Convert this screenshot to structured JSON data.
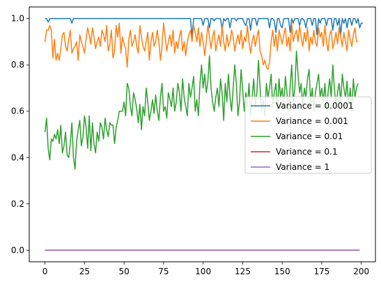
{
  "chart_data": {
    "type": "line",
    "x_ticks": [
      0,
      25,
      50,
      75,
      100,
      125,
      150,
      175,
      200
    ],
    "y_ticks": [
      "0.0",
      "0.2",
      "0.4",
      "0.6",
      "0.8",
      "1.0"
    ],
    "xlim": [
      -9.95,
      208.95
    ],
    "ylim": [
      -0.05,
      1.05
    ],
    "grid": false,
    "legend_position": "center-right",
    "series": [
      {
        "name": "Variance = 0.0001",
        "color": "#1f77b4",
        "values": [
          1.0,
          1.0,
          0.985,
          1.0,
          1.0,
          1.0,
          1.0,
          1.0,
          1.0,
          1.0,
          1.0,
          1.0,
          1.0,
          1.0,
          1.0,
          1.0,
          1.0,
          0.98,
          1.0,
          1.0,
          1.0,
          1.0,
          1.0,
          1.0,
          1.0,
          1.0,
          1.0,
          1.0,
          1.0,
          1.0,
          1.0,
          1.0,
          1.0,
          1.0,
          1.0,
          1.0,
          1.0,
          1.0,
          1.0,
          1.0,
          1.0,
          1.0,
          1.0,
          1.0,
          1.0,
          1.0,
          1.0,
          1.0,
          1.0,
          1.0,
          1.0,
          1.0,
          1.0,
          1.0,
          1.0,
          1.0,
          1.0,
          1.0,
          1.0,
          1.0,
          1.0,
          1.0,
          1.0,
          1.0,
          1.0,
          1.0,
          1.0,
          1.0,
          1.0,
          1.0,
          1.0,
          1.0,
          1.0,
          1.0,
          1.0,
          1.0,
          1.0,
          1.0,
          1.0,
          1.0,
          1.0,
          1.0,
          1.0,
          1.0,
          1.0,
          1.0,
          1.0,
          1.0,
          1.0,
          1.0,
          1.0,
          1.0,
          1.0,
          0.92,
          1.0,
          1.0,
          1.0,
          1.0,
          1.0,
          1.0,
          0.97,
          1.0,
          1.0,
          1.0,
          0.96,
          1.0,
          1.0,
          0.99,
          1.0,
          1.0,
          1.0,
          1.0,
          0.95,
          1.0,
          0.99,
          1.0,
          1.0,
          0.96,
          1.0,
          1.0,
          1.0,
          0.99,
          1.0,
          1.0,
          1.0,
          1.0,
          0.98,
          0.97,
          1.0,
          1.0,
          0.95,
          1.0,
          1.0,
          1.0,
          0.97,
          1.0,
          1.0,
          1.0,
          1.0,
          1.0,
          1.0,
          1.0,
          0.96,
          1.0,
          1.0,
          0.99,
          0.94,
          1.0,
          1.0,
          0.97,
          0.96,
          1.0,
          1.0,
          1.0,
          1.0,
          0.94,
          1.0,
          0.98,
          1.0,
          1.0,
          1.0,
          0.97,
          1.0,
          1.0,
          0.99,
          0.96,
          1.0,
          1.0,
          1.0,
          0.97,
          1.0,
          1.0,
          0.93,
          1.0,
          0.98,
          1.0,
          1.0,
          1.0,
          0.97,
          1.0,
          1.0,
          1.0,
          0.95,
          1.0,
          1.0,
          0.97,
          1.0,
          0.93,
          1.0,
          0.98,
          1.0,
          0.96,
          1.0,
          1.0,
          0.97,
          1.0,
          1.0,
          0.98,
          1.0,
          0.96,
          0.98,
          0.98
        ]
      },
      {
        "name": "Variance = 0.001",
        "color": "#ff7f0e",
        "values": [
          0.9,
          0.95,
          0.95,
          0.97,
          0.95,
          0.83,
          0.91,
          0.82,
          0.85,
          0.82,
          0.87,
          0.93,
          0.94,
          0.88,
          0.86,
          0.91,
          0.95,
          0.85,
          0.87,
          0.88,
          0.9,
          0.82,
          0.93,
          0.9,
          0.88,
          0.85,
          0.91,
          0.96,
          0.93,
          0.89,
          0.96,
          0.92,
          0.87,
          0.9,
          0.92,
          0.88,
          0.95,
          0.93,
          0.9,
          0.97,
          0.86,
          0.89,
          0.95,
          0.83,
          0.86,
          0.97,
          0.92,
          0.98,
          0.85,
          0.92,
          0.89,
          0.87,
          0.79,
          0.91,
          0.95,
          0.88,
          0.9,
          0.93,
          0.88,
          0.85,
          0.97,
          0.92,
          0.88,
          0.86,
          0.9,
          0.94,
          0.82,
          0.9,
          0.94,
          0.88,
          0.9,
          0.95,
          0.9,
          0.82,
          0.88,
          0.98,
          0.92,
          0.86,
          0.9,
          0.93,
          0.88,
          0.95,
          0.85,
          0.9,
          0.87,
          0.92,
          0.95,
          0.86,
          0.9,
          0.84,
          0.9,
          0.93,
          0.95,
          0.9,
          0.97,
          0.94,
          0.9,
          0.96,
          0.88,
          0.94,
          0.9,
          0.84,
          0.9,
          0.97,
          0.92,
          0.87,
          0.92,
          0.95,
          0.86,
          0.9,
          0.93,
          0.88,
          0.97,
          0.9,
          0.86,
          0.93,
          0.88,
          0.9,
          0.95,
          0.92,
          0.86,
          0.9,
          0.93,
          0.89,
          0.95,
          0.87,
          0.92,
          0.9,
          0.97,
          0.9,
          0.85,
          0.9,
          0.93,
          0.88,
          0.92,
          0.95,
          0.86,
          0.84,
          0.8,
          0.82,
          0.79,
          0.78,
          0.81,
          0.9,
          0.95,
          0.88,
          0.93,
          0.86,
          0.95,
          0.92,
          0.89,
          0.93,
          0.96,
          0.88,
          0.92,
          0.86,
          0.98,
          0.9,
          0.93,
          0.95,
          0.9,
          0.97,
          0.92,
          0.88,
          0.94,
          0.9,
          0.96,
          0.86,
          0.92,
          0.89,
          0.95,
          0.9,
          0.88,
          0.96,
          0.92,
          0.94,
          0.88,
          0.97,
          0.9,
          0.86,
          0.93,
          0.95,
          0.87,
          0.9,
          0.94,
          0.89,
          0.96,
          0.92,
          0.88,
          0.94,
          0.9,
          0.86,
          0.95,
          0.91,
          0.88,
          0.93,
          0.96,
          0.9,
          0.9
        ]
      },
      {
        "name": "Variance = 0.01",
        "color": "#2ca02c",
        "values": [
          0.51,
          0.57,
          0.44,
          0.39,
          0.48,
          0.47,
          0.5,
          0.48,
          0.52,
          0.46,
          0.54,
          0.42,
          0.45,
          0.51,
          0.41,
          0.4,
          0.46,
          0.55,
          0.4,
          0.35,
          0.47,
          0.52,
          0.56,
          0.45,
          0.49,
          0.58,
          0.53,
          0.44,
          0.58,
          0.43,
          0.55,
          0.46,
          0.42,
          0.51,
          0.47,
          0.55,
          0.53,
          0.48,
          0.57,
          0.52,
          0.49,
          0.55,
          0.54,
          0.54,
          0.46,
          0.53,
          0.56,
          0.6,
          0.6,
          0.6,
          0.64,
          0.58,
          0.72,
          0.7,
          0.62,
          0.58,
          0.68,
          0.65,
          0.61,
          0.55,
          0.63,
          0.52,
          0.62,
          0.58,
          0.7,
          0.64,
          0.56,
          0.6,
          0.65,
          0.59,
          0.67,
          0.6,
          0.56,
          0.66,
          0.72,
          0.6,
          0.62,
          0.57,
          0.68,
          0.65,
          0.62,
          0.7,
          0.6,
          0.64,
          0.72,
          0.68,
          0.6,
          0.74,
          0.66,
          0.62,
          0.58,
          0.72,
          0.66,
          0.7,
          0.75,
          0.6,
          0.65,
          0.58,
          0.72,
          0.8,
          0.7,
          0.76,
          0.68,
          0.73,
          0.84,
          0.7,
          0.64,
          0.6,
          0.66,
          0.7,
          0.62,
          0.74,
          0.68,
          0.56,
          0.72,
          0.64,
          0.76,
          0.66,
          0.6,
          0.7,
          0.8,
          0.72,
          0.58,
          0.64,
          0.78,
          0.69,
          0.6,
          0.68,
          0.62,
          0.72,
          0.58,
          0.66,
          0.74,
          0.62,
          0.68,
          0.82,
          0.7,
          0.6,
          0.65,
          0.58,
          0.72,
          0.66,
          0.7,
          0.76,
          0.62,
          0.68,
          0.72,
          0.6,
          0.74,
          0.66,
          0.7,
          0.62,
          0.75,
          0.68,
          0.6,
          0.7,
          0.8,
          0.64,
          0.7,
          0.86,
          0.76,
          0.68,
          0.72,
          0.62,
          0.7,
          0.66,
          0.74,
          0.78,
          0.64,
          0.7,
          0.6,
          0.68,
          0.72,
          0.76,
          0.66,
          0.7,
          0.64,
          0.72,
          0.6,
          0.68,
          0.74,
          0.66,
          0.8,
          0.7,
          0.62,
          0.68,
          0.72,
          0.64,
          0.76,
          0.7,
          0.66,
          0.73,
          0.62,
          0.7,
          0.6,
          0.74,
          0.66,
          0.7,
          0.72
        ]
      },
      {
        "name": "Variance = 0.1",
        "color": "#d62728",
        "values": [
          0.0,
          0.0
        ]
      },
      {
        "name": "Variance = 1",
        "color": "#9467bd",
        "values": [
          0.0,
          0.0
        ]
      }
    ]
  }
}
